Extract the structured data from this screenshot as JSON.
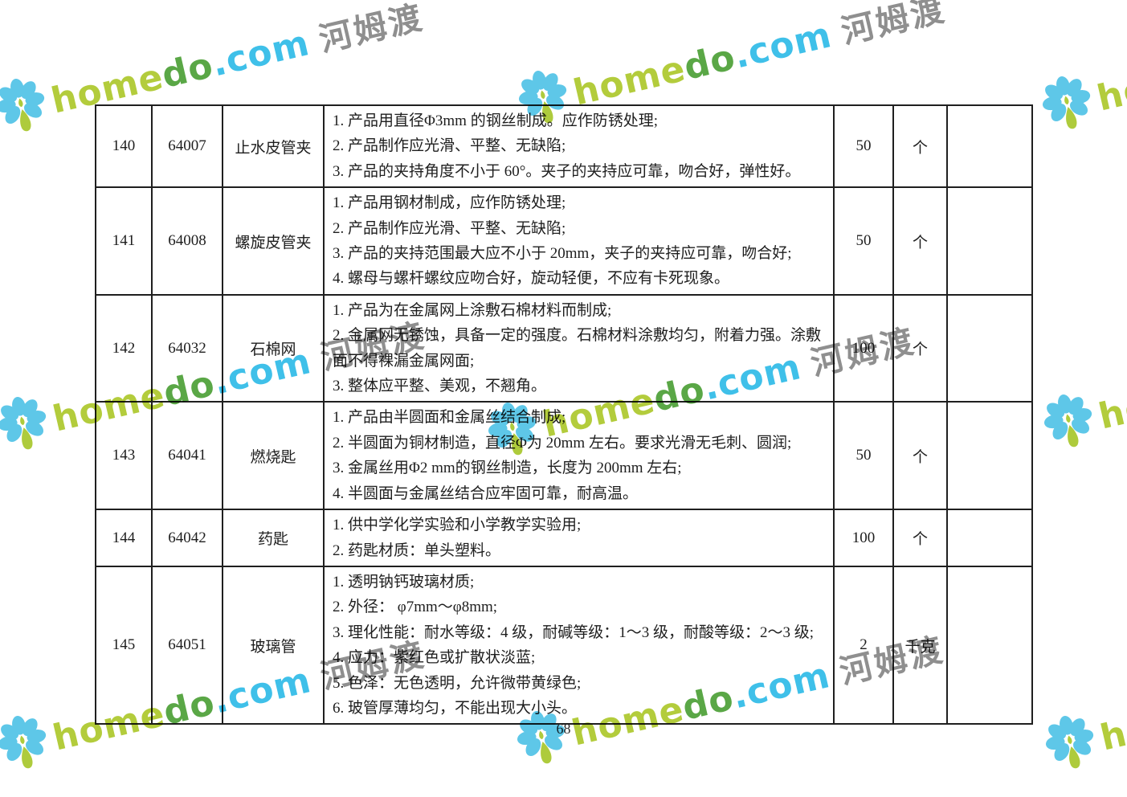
{
  "page": {
    "number": "68"
  },
  "watermark": {
    "home": "home",
    "do": "do",
    "com": ".com",
    "cn": "河姆渡",
    "colors": {
      "home": "#b3cc3c",
      "do": "#5aa746",
      "com": "#3fc0e9",
      "cn": "#8f8f8f",
      "petal": "#5ec7e8",
      "leaf": "#aecb3c"
    }
  },
  "table": {
    "rows": [
      {
        "no": "140",
        "code": "64007",
        "name": "止水皮管夹",
        "specs": [
          "1. 产品用直径Φ3mm 的钢丝制成。应作防锈处理;",
          "2. 产品制作应光滑、平整、无缺陷;",
          "3. 产品的夹持角度不小于 60°。夹子的夹持应可靠，吻合好，弹性好。"
        ],
        "qty": "50",
        "unit": "个",
        "remark": ""
      },
      {
        "no": "141",
        "code": "64008",
        "name": "螺旋皮管夹",
        "specs": [
          "1. 产品用钢材制成，应作防锈处理;",
          "2. 产品制作应光滑、平整、无缺陷;",
          "3. 产品的夹持范围最大应不小于 20mm，夹子的夹持应可靠，吻合好;",
          "4. 螺母与螺杆螺纹应吻合好，旋动轻便，不应有卡死现象。"
        ],
        "qty": "50",
        "unit": "个",
        "remark": ""
      },
      {
        "no": "142",
        "code": "64032",
        "name": "石棉网",
        "specs": [
          "1. 产品为在金属网上涂敷石棉材料而制成;",
          "2. 金属网无锈蚀，具备一定的强度。石棉材料涂敷均匀，附着力强。涂敷面不得裸漏金属网面;",
          "3. 整体应平整、美观，不翘角。"
        ],
        "qty": "100",
        "unit": "个",
        "remark": ""
      },
      {
        "no": "143",
        "code": "64041",
        "name": "燃烧匙",
        "specs": [
          "1. 产品由半圆面和金属丝结合制成;",
          "2. 半圆面为铜材制造，直径Φ为 20mm 左右。要求光滑无毛刺、圆润;",
          "3. 金属丝用Φ2 mm的钢丝制造，长度为 200mm 左右;",
          "4. 半圆面与金属丝结合应牢固可靠，耐高温。"
        ],
        "qty": "50",
        "unit": "个",
        "remark": ""
      },
      {
        "no": "144",
        "code": "64042",
        "name": "药匙",
        "specs": [
          "1. 供中学化学实验和小学教学实验用;",
          "2. 药匙材质：单头塑料。"
        ],
        "qty": "100",
        "unit": "个",
        "remark": ""
      },
      {
        "no": "145",
        "code": "64051",
        "name": "玻璃管",
        "specs": [
          "1. 透明钠钙玻璃材质;",
          "2. 外径： φ7mm～φ8mm;",
          "3. 理化性能：耐水等级：4 级，耐碱等级：1～3 级，耐酸等级：2～3 级;",
          "4. 应力：紫红色或扩散状淡蓝;",
          "5. 色泽：无色透明，允许微带黄绿色;",
          "6. 玻管厚薄均匀，不能出现大小头。"
        ],
        "qty": "2",
        "unit": "千克",
        "remark": ""
      }
    ]
  }
}
